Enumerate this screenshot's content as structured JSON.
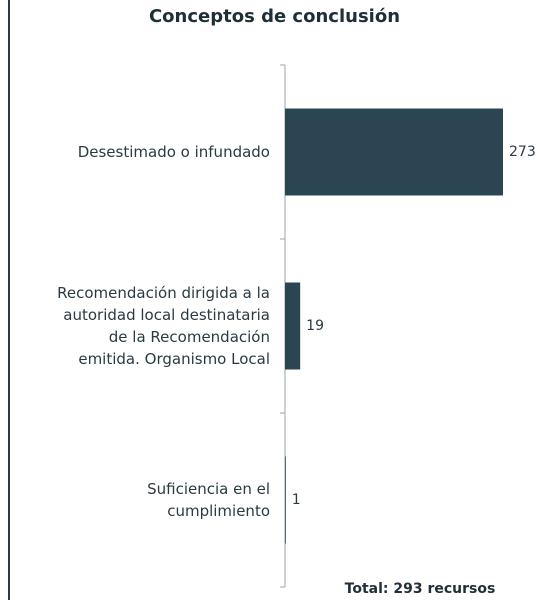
{
  "chart_data": {
    "type": "bar",
    "orientation": "horizontal",
    "title": "Conceptos de conclusión",
    "categories": [
      "Desestimado o infundado",
      "Recomendación dirigida a la\nautoridad local destinataria\nde la Recomendación\nemitida. Organismo Local",
      "Suficiencia en el\ncumplimiento"
    ],
    "values": [
      273,
      19,
      1
    ],
    "color": "#2b4553",
    "annotation": "Total: 293 recursos"
  }
}
